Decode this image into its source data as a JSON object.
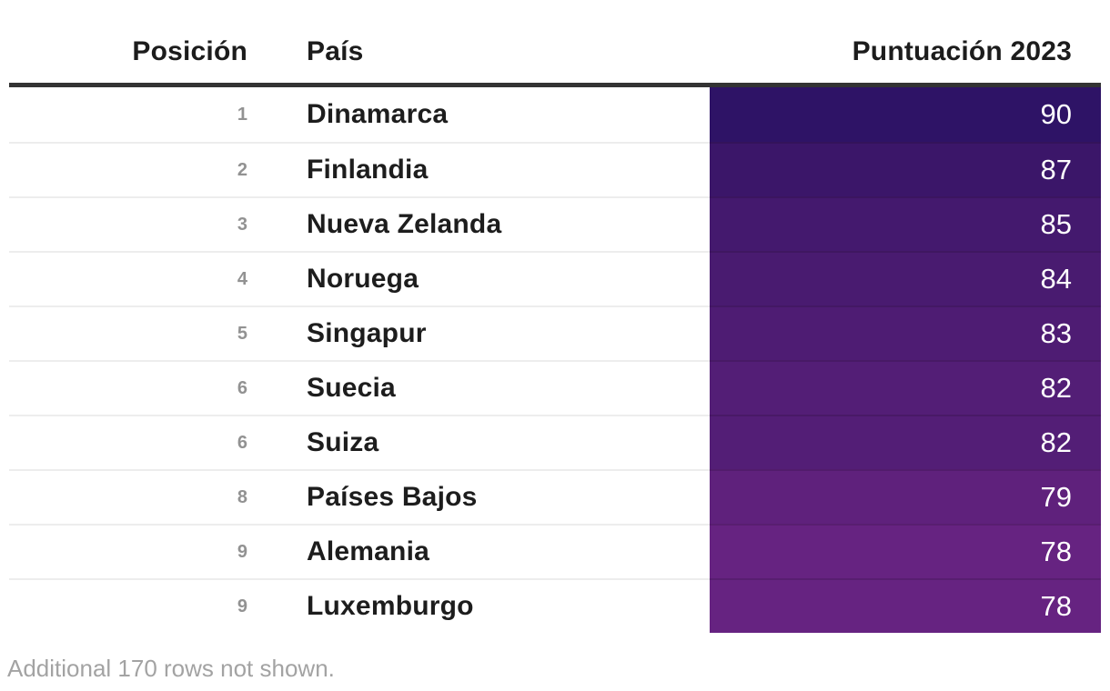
{
  "table": {
    "columns": [
      {
        "key": "position",
        "label": "Posición"
      },
      {
        "key": "country",
        "label": "País"
      },
      {
        "key": "score",
        "label": "Puntuación 2023"
      }
    ],
    "rows": [
      {
        "position": "1",
        "country": "Dinamarca",
        "score": "90",
        "color": "#2e1366"
      },
      {
        "position": "2",
        "country": "Finlandia",
        "score": "87",
        "color": "#3b1669"
      },
      {
        "position": "3",
        "country": "Nueva Zelanda",
        "score": "85",
        "color": "#44196e"
      },
      {
        "position": "4",
        "country": "Noruega",
        "score": "84",
        "color": "#491b70"
      },
      {
        "position": "5",
        "country": "Singapur",
        "score": "83",
        "color": "#4e1c73"
      },
      {
        "position": "6",
        "country": "Suecia",
        "score": "82",
        "color": "#531e76"
      },
      {
        "position": "6",
        "country": "Suiza",
        "score": "82",
        "color": "#531e76"
      },
      {
        "position": "8",
        "country": "Países Bajos",
        "score": "79",
        "color": "#5f217c"
      },
      {
        "position": "9",
        "country": "Alemania",
        "score": "78",
        "color": "#662381"
      },
      {
        "position": "9",
        "country": "Luxemburgo",
        "score": "78",
        "color": "#662381"
      }
    ],
    "footer": "Additional 170 rows not shown."
  },
  "colors": {
    "header_rule": "#333333",
    "row_separator": "#ededed",
    "rank_text": "#929292",
    "country_text": "#1d1d1d",
    "score_text": "#ffffff",
    "footer_text": "#a3a3a3"
  },
  "chart_data": {
    "type": "table",
    "title": "",
    "columns": [
      "Posición",
      "País",
      "Puntuación 2023"
    ],
    "rows": [
      [
        1,
        "Dinamarca",
        90
      ],
      [
        2,
        "Finlandia",
        87
      ],
      [
        3,
        "Nueva Zelanda",
        85
      ],
      [
        4,
        "Noruega",
        84
      ],
      [
        5,
        "Singapur",
        83
      ],
      [
        6,
        "Suecia",
        82
      ],
      [
        6,
        "Suiza",
        82
      ],
      [
        8,
        "Países Bajos",
        79
      ],
      [
        9,
        "Alemania",
        78
      ],
      [
        9,
        "Luxemburgo",
        78
      ]
    ],
    "score_cell_colors": [
      "#2e1366",
      "#3b1669",
      "#44196e",
      "#491b70",
      "#4e1c73",
      "#531e76",
      "#531e76",
      "#5f217c",
      "#662381",
      "#662381"
    ],
    "annotations": [
      "Additional 170 rows not shown."
    ],
    "layout_hints": "score column rendered as right-aligned colored bar cells, darker purple = higher score"
  }
}
